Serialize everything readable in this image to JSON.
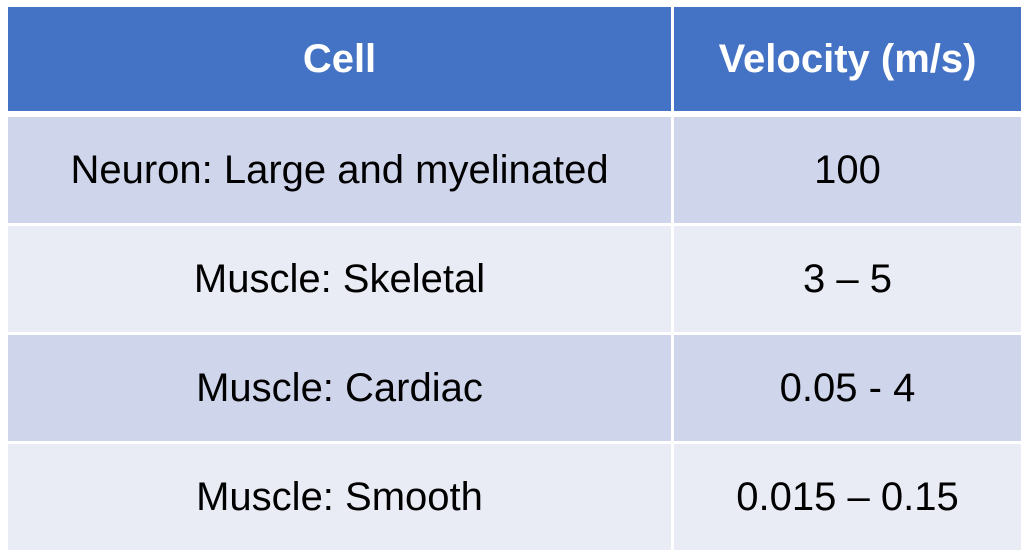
{
  "table": {
    "headers": [
      "Cell",
      "Velocity (m/s)"
    ],
    "rows": [
      {
        "cell": "Neuron: Large and myelinated",
        "velocity": "100"
      },
      {
        "cell": "Muscle: Skeletal",
        "velocity": "3 – 5"
      },
      {
        "cell": "Muscle: Cardiac",
        "velocity": "0.05 - 4"
      },
      {
        "cell": "Muscle: Smooth",
        "velocity": "0.015 – 0.15"
      }
    ]
  },
  "colors": {
    "header_bg": "#4472c4",
    "row_odd_bg": "#cfd5ea",
    "row_even_bg": "#e9ebf5",
    "border": "#ffffff"
  }
}
